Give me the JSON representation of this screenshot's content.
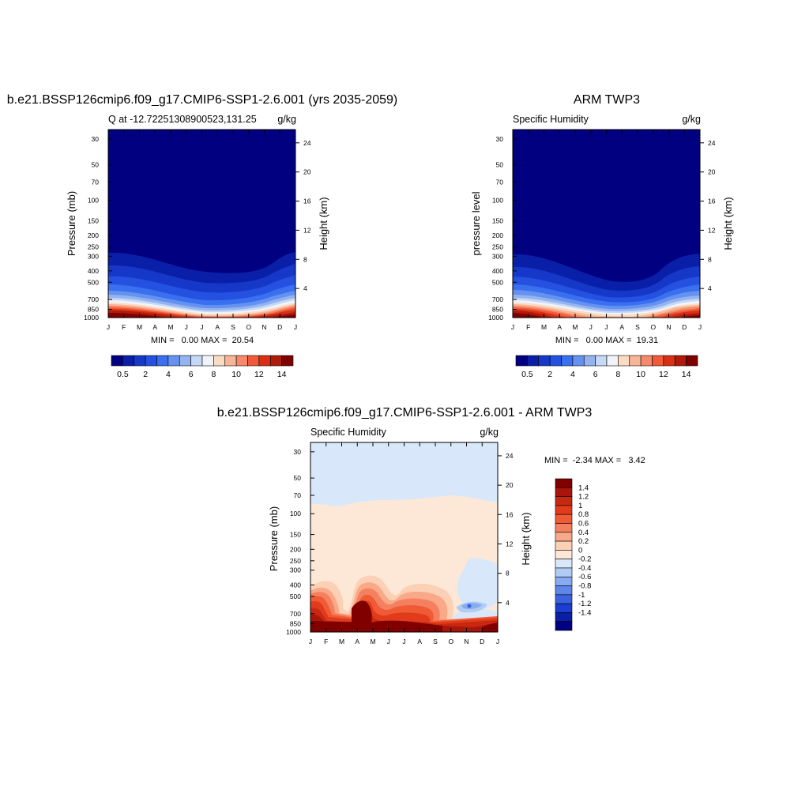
{
  "panels": {
    "left": {
      "title": "b.e21.BSSP126cmip6.f09_g17.CMIP6-SSP1-2.6.001 (yrs 2035-2059)",
      "left_string": "Q at -12.72251308900523,131.25",
      "right_string": "g/kg",
      "ylabel": "Pressure (mb)",
      "ylabel_right": "Height (km)",
      "stats": "MIN =   0.00 MAX =  20.54"
    },
    "right": {
      "title": "ARM TWP3",
      "left_string": "Specific Humidity",
      "right_string": "g/kg",
      "ylabel": "pressure level",
      "ylabel_right": "Height (km)",
      "stats": "MIN =   0.00 MAX =  19.31"
    },
    "diff": {
      "title": "b.e21.BSSP126cmip6.f09_g17.CMIP6-SSP1-2.6.001 - ARM TWP3",
      "left_string": "Specific Humidity",
      "right_string": "g/kg",
      "ylabel": "Pressure (mb)",
      "ylabel_right": "Height (km)",
      "stats": "MIN =  -2.34 MAX =   3.42"
    }
  },
  "chart_data": [
    {
      "type": "heatmap",
      "name": "model",
      "x_ticks": [
        "J",
        "F",
        "M",
        "A",
        "M",
        "J",
        "J",
        "A",
        "S",
        "O",
        "N",
        "D",
        "J"
      ],
      "y_ticks_pressure": [
        30,
        50,
        70,
        100,
        150,
        200,
        250,
        300,
        400,
        500,
        700,
        850,
        1000
      ],
      "y_ticks_height_km": [
        24,
        20,
        16,
        12,
        8,
        4
      ],
      "ylim_pressure_mb": [
        1000,
        25
      ],
      "y_scale": "log",
      "colorbar_levels": [
        0.5,
        1,
        2,
        3,
        4,
        5,
        6,
        7,
        8,
        9,
        10,
        11,
        12,
        13,
        14
      ],
      "colorbar_labels": [
        "0.5",
        "2",
        "4",
        "6",
        "8",
        "10",
        "12",
        "14"
      ],
      "colors": [
        "#000080",
        "#0a1fa8",
        "#1638c8",
        "#2451e0",
        "#3a6ff0",
        "#6592f0",
        "#94b4f0",
        "#c5d8f5",
        "#f0f4fa",
        "#fbdcc3",
        "#f8b596",
        "#f5896a",
        "#f05a3a",
        "#d93015",
        "#b01a0a",
        "#800000"
      ],
      "summary": "Moist layer near surface (>14 g/kg below 850 mb), decreasing upward; very dry (<0.5) above ~300 mb; moist layer deepest Dec-Mar, shallowest Jul-Sep."
    },
    {
      "type": "heatmap",
      "name": "observations",
      "x_ticks": [
        "J",
        "F",
        "M",
        "A",
        "M",
        "J",
        "J",
        "A",
        "S",
        "O",
        "N",
        "D",
        "J"
      ],
      "y_ticks_pressure": [
        30,
        50,
        70,
        100,
        150,
        200,
        250,
        300,
        400,
        500,
        700,
        850,
        1000
      ],
      "y_ticks_height_km": [
        24,
        20,
        16,
        12,
        8,
        4
      ],
      "ylim_pressure_mb": [
        1000,
        25
      ],
      "y_scale": "log",
      "colorbar_labels": [
        "0.5",
        "2",
        "4",
        "6",
        "8",
        "10",
        "12",
        "14"
      ]
    },
    {
      "type": "heatmap",
      "name": "difference",
      "x_ticks": [
        "J",
        "F",
        "M",
        "A",
        "M",
        "J",
        "J",
        "A",
        "S",
        "O",
        "N",
        "D",
        "J"
      ],
      "y_ticks_pressure": [
        30,
        50,
        70,
        100,
        150,
        200,
        250,
        300,
        400,
        500,
        700,
        850,
        1000
      ],
      "y_ticks_height_km": [
        24,
        20,
        16,
        12,
        8,
        4
      ],
      "ylim_pressure_mb": [
        1000,
        25
      ],
      "y_scale": "log",
      "colorbar_levels": [
        "1.4",
        "1.2",
        "1",
        "0.8",
        "0.6",
        "0.4",
        "0.2",
        "0",
        "-0.2",
        "-0.4",
        "-0.6",
        "-0.8",
        "-1",
        "-1.2",
        "-1.4"
      ],
      "colors": [
        "#800000",
        "#a8150a",
        "#c82810",
        "#e03c1c",
        "#f05a35",
        "#f58060",
        "#f9a888",
        "#fcd0b4",
        "#fde8d8",
        "#d8e8fa",
        "#b0ccf5",
        "#88aaf0",
        "#5e86ea",
        "#3a62e0",
        "#1c3ed0",
        "#0a1fa8",
        "#000080"
      ],
      "summary": "Weak negative (-0.2..0) above ~90 mb, weak positive (0..0.2) from 90 mb to 500 mb, strong positive (>1.4) near surface except Sep-Nov, negative pocket near 600 mb in Oct-Nov."
    }
  ]
}
